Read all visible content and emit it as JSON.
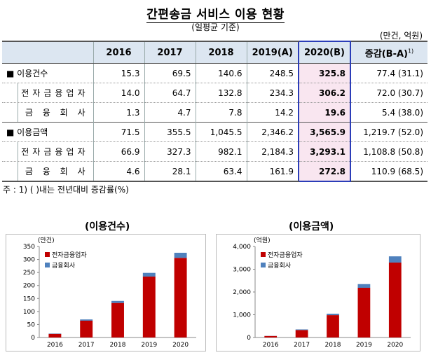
{
  "title": "간편송금 서비스 이용 현황",
  "subtitle": "(일평균 기준)",
  "unit": "(만건, 억원)",
  "table": {
    "headers": [
      "2016",
      "2017",
      "2018",
      "2019(A)",
      "2020(B)",
      "증감(B-A)"
    ],
    "header_sup": "1)",
    "rows": [
      {
        "label": "■ 이용건수",
        "kind": "main",
        "values": [
          "15.3",
          "69.5",
          "140.6",
          "248.5",
          "325.8",
          "77.4 (31.1)"
        ]
      },
      {
        "label": "전자금융업자",
        "kind": "sub",
        "values": [
          "14.0",
          "64.7",
          "132.8",
          "234.3",
          "306.2",
          "72.0 (30.7)"
        ]
      },
      {
        "label": "금 융 회 사",
        "kind": "sub",
        "values": [
          "1.3",
          "4.7",
          "7.8",
          "14.2",
          "19.6",
          "5.4 (38.0)"
        ]
      },
      {
        "label": "■ 이용금액",
        "kind": "main",
        "values": [
          "71.5",
          "355.5",
          "1,045.5",
          "2,346.2",
          "3,565.9",
          "1,219.7 (52.0)"
        ]
      },
      {
        "label": "전자금융업자",
        "kind": "sub",
        "values": [
          "66.9",
          "327.3",
          "982.1",
          "2,184.3",
          "3,293.1",
          "1,108.8 (50.8)"
        ]
      },
      {
        "label": "금 융 회 사",
        "kind": "sub",
        "values": [
          "4.6",
          "28.1",
          "63.4",
          "161.9",
          "272.8",
          "110.9 (68.5)"
        ]
      }
    ]
  },
  "note": "주 : 1) (   )내는 전년대비 증감률(%)",
  "colors": {
    "electronic": "#c00000",
    "financial": "#4f81bd",
    "highlight_border": "#2b3db8",
    "header_bg": "#dce6f1",
    "highlight_bg": "#f9e6f0"
  },
  "chart_data": [
    {
      "type": "bar",
      "stacked": true,
      "title": "(이용건수)",
      "unit_label": "(만건)",
      "categories": [
        "2016",
        "2017",
        "2018",
        "2019",
        "2020"
      ],
      "series": [
        {
          "name": "전자금융업자",
          "values": [
            14.0,
            64.7,
            132.8,
            234.3,
            306.2
          ]
        },
        {
          "name": "금융회사",
          "values": [
            1.3,
            4.7,
            7.8,
            14.2,
            19.6
          ]
        }
      ],
      "ylim": [
        0,
        350
      ],
      "yticks": [
        "0",
        "50",
        "100",
        "150",
        "200",
        "250",
        "300",
        "350"
      ],
      "ytick_values": [
        0,
        50,
        100,
        150,
        200,
        250,
        300,
        350
      ],
      "grid": false,
      "legend": "top-left"
    },
    {
      "type": "bar",
      "stacked": true,
      "title": "(이용금액)",
      "unit_label": "(억원)",
      "categories": [
        "2016",
        "2017",
        "2018",
        "2019",
        "2020"
      ],
      "series": [
        {
          "name": "전자금융업자",
          "values": [
            66.9,
            327.3,
            982.1,
            2184.3,
            3293.1
          ]
        },
        {
          "name": "금융회사",
          "values": [
            4.6,
            28.1,
            63.4,
            161.9,
            272.8
          ]
        }
      ],
      "ylim": [
        0,
        4000
      ],
      "yticks": [
        "0",
        "1,000",
        "2,000",
        "3,000",
        "4,000"
      ],
      "ytick_values": [
        0,
        1000,
        2000,
        3000,
        4000
      ],
      "grid": false,
      "legend": "top-left"
    }
  ]
}
